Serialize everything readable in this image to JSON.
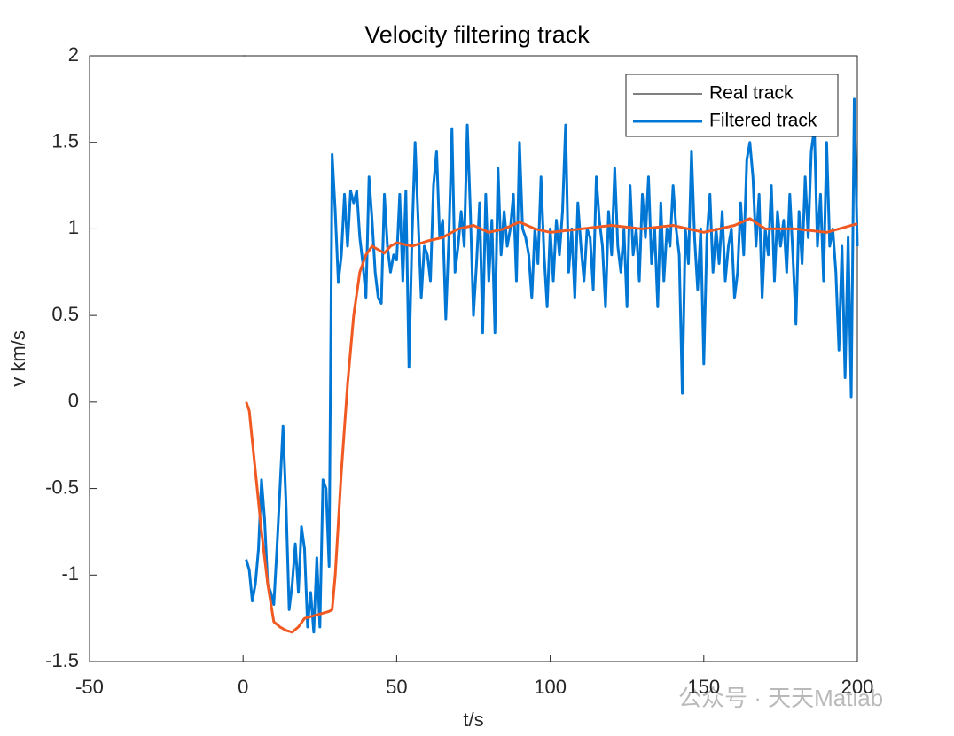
{
  "chart_data": {
    "type": "line",
    "title": "Velocity filtering track",
    "xlabel": "t/s",
    "ylabel": "v km/s",
    "xlim": [
      -50,
      200
    ],
    "xticks": [
      -50,
      0,
      50,
      100,
      150,
      200
    ],
    "ylim": [
      -1.5,
      2
    ],
    "yticks": [
      -1.5,
      -1,
      -0.5,
      0,
      0.5,
      1,
      1.5,
      2
    ],
    "watermark": "公众号 · 天天Matlab",
    "series": [
      {
        "name": "Real track",
        "color": "#000000",
        "width": 1,
        "x": [
          0,
          1
        ],
        "values": [
          2,
          2
        ]
      },
      {
        "name": "Filtered track",
        "color": "#0077d4",
        "width": 3,
        "x": [
          1,
          2,
          3,
          4,
          5,
          6,
          7,
          8,
          9,
          10,
          11,
          12,
          13,
          14,
          15,
          16,
          17,
          18,
          19,
          20,
          21,
          22,
          23,
          24,
          25,
          26,
          27,
          28,
          29,
          30,
          31,
          32,
          33,
          34,
          35,
          36,
          37,
          38,
          39,
          40,
          41,
          42,
          43,
          44,
          45,
          46,
          47,
          48,
          49,
          50,
          51,
          52,
          53,
          54,
          55,
          56,
          57,
          58,
          59,
          60,
          61,
          62,
          63,
          64,
          65,
          66,
          67,
          68,
          69,
          70,
          71,
          72,
          73,
          74,
          75,
          76,
          77,
          78,
          79,
          80,
          81,
          82,
          83,
          84,
          85,
          86,
          87,
          88,
          89,
          90,
          91,
          92,
          93,
          94,
          95,
          96,
          97,
          98,
          99,
          100,
          101,
          102,
          103,
          104,
          105,
          106,
          107,
          108,
          109,
          110,
          111,
          112,
          113,
          114,
          115,
          116,
          117,
          118,
          119,
          120,
          121,
          122,
          123,
          124,
          125,
          126,
          127,
          128,
          129,
          130,
          131,
          132,
          133,
          134,
          135,
          136,
          137,
          138,
          139,
          140,
          141,
          142,
          143,
          144,
          145,
          146,
          147,
          148,
          149,
          150,
          151,
          152,
          153,
          154,
          155,
          156,
          157,
          158,
          159,
          160,
          161,
          162,
          163,
          164,
          165,
          166,
          167,
          168,
          169,
          170,
          171,
          172,
          173,
          174,
          175,
          176,
          177,
          178,
          179,
          180,
          181,
          182,
          183,
          184,
          185,
          186,
          187,
          188,
          189,
          190,
          191,
          192,
          193,
          194,
          195,
          196,
          197,
          198,
          199,
          200
        ],
        "values": [
          -0.91,
          -0.97,
          -1.15,
          -1.05,
          -0.85,
          -0.45,
          -0.68,
          -1.05,
          -1.1,
          -1.17,
          -0.85,
          -0.5,
          -0.14,
          -0.6,
          -1.2,
          -1.05,
          -0.82,
          -1.1,
          -0.72,
          -0.85,
          -1.3,
          -1.1,
          -1.33,
          -0.9,
          -1.3,
          -0.45,
          -0.5,
          -0.95,
          1.43,
          1.1,
          0.69,
          0.85,
          1.2,
          0.9,
          1.22,
          1.15,
          1.22,
          0.95,
          0.8,
          0.6,
          1.3,
          1.05,
          0.75,
          0.6,
          0.57,
          1.2,
          0.9,
          0.75,
          0.85,
          0.82,
          1.2,
          0.7,
          1.22,
          0.2,
          0.95,
          1.5,
          1.05,
          0.6,
          0.9,
          0.85,
          0.7,
          1.25,
          1.45,
          0.95,
          1.05,
          0.48,
          0.95,
          1.58,
          0.75,
          0.9,
          1.1,
          0.9,
          1.6,
          1.1,
          0.5,
          0.8,
          1.15,
          0.4,
          1.2,
          0.7,
          1.05,
          0.4,
          1.35,
          0.85,
          1.1,
          0.9,
          1.0,
          1.2,
          0.7,
          1.5,
          1.0,
          0.95,
          0.85,
          0.6,
          1.0,
          0.8,
          1.3,
          0.85,
          0.55,
          1.0,
          0.7,
          1.05,
          0.85,
          1.1,
          1.6,
          0.75,
          1.0,
          0.6,
          1.15,
          0.9,
          0.7,
          1.0,
          0.95,
          0.65,
          1.3,
          1.05,
          0.9,
          0.55,
          1.1,
          0.85,
          1.35,
          0.9,
          0.75,
          1.0,
          0.55,
          1.25,
          0.85,
          1.0,
          0.7,
          1.2,
          0.95,
          1.3,
          0.8,
          1.0,
          0.55,
          1.15,
          0.7,
          1.0,
          0.9,
          1.25,
          1.0,
          0.85,
          0.05,
          1.0,
          0.8,
          1.45,
          0.95,
          0.65,
          1.0,
          0.22,
          0.95,
          1.2,
          0.75,
          1.0,
          0.8,
          1.1,
          0.7,
          0.9,
          1.0,
          0.6,
          0.75,
          1.15,
          0.85,
          1.4,
          1.5,
          1.3,
          0.9,
          1.2,
          0.6,
          1.0,
          0.85,
          1.25,
          0.7,
          1.1,
          0.9,
          1.05,
          0.75,
          1.2,
          0.85,
          0.45,
          1.1,
          0.8,
          1.3,
          0.95,
          1.45,
          1.58,
          0.9,
          1.2,
          0.7,
          1.5,
          0.9,
          1.0,
          0.75,
          0.3,
          0.9,
          0.14,
          0.95,
          0.03,
          1.75,
          0.9
        ]
      },
      {
        "color": "#f05a22",
        "width": 3,
        "x": [
          1,
          2,
          4,
          6,
          8,
          10,
          12,
          14,
          16,
          18,
          20,
          22,
          24,
          26,
          28,
          29,
          30,
          32,
          34,
          36,
          38,
          40,
          42,
          44,
          46,
          48,
          50,
          55,
          60,
          65,
          70,
          75,
          80,
          85,
          90,
          95,
          100,
          110,
          120,
          130,
          140,
          150,
          160,
          165,
          170,
          180,
          190,
          200
        ],
        "values": [
          0,
          -0.05,
          -0.4,
          -0.75,
          -1.05,
          -1.27,
          -1.3,
          -1.32,
          -1.33,
          -1.3,
          -1.25,
          -1.24,
          -1.23,
          -1.22,
          -1.21,
          -1.2,
          -1.0,
          -0.4,
          0.1,
          0.5,
          0.75,
          0.85,
          0.9,
          0.88,
          0.86,
          0.9,
          0.92,
          0.9,
          0.93,
          0.95,
          1.0,
          1.02,
          0.98,
          1.0,
          1.04,
          1.0,
          0.98,
          1.0,
          1.02,
          1.0,
          1.02,
          0.98,
          1.02,
          1.06,
          1.0,
          1.0,
          0.98,
          1.03
        ]
      }
    ]
  }
}
